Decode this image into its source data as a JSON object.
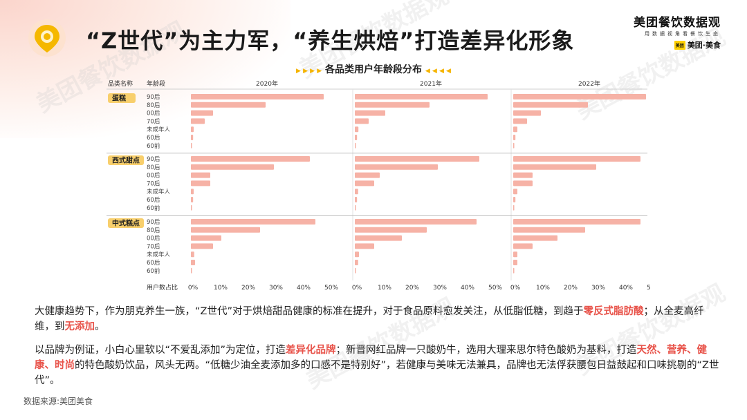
{
  "header": {
    "title": "“Z世代”为主力军，“养生烘焙”打造差异化形象",
    "brand_name": "美团餐饮数据观",
    "brand_sub": "用数据视角看餐饮生态",
    "brand_logo_text": "美团·美食",
    "brand_badge": "美团",
    "watermark": "美团餐饮数据观"
  },
  "chart_title": "各品类用户年龄段分布",
  "chart_data": {
    "type": "bar",
    "orientation": "horizontal",
    "title": "各品类用户年龄段分布",
    "header_category": "品类名称",
    "header_age": "年龄段",
    "xlabel": "用户数占比",
    "xlim": [
      0,
      50
    ],
    "ticks": [
      "0%",
      "10%",
      "20%",
      "30%",
      "40%",
      "50%"
    ],
    "years": [
      "2020年",
      "2021年",
      "2022年"
    ],
    "age_groups": [
      "90后",
      "80后",
      "00后",
      "70后",
      "未成年人",
      "60后",
      "60前"
    ],
    "categories": [
      {
        "name": "蛋糕",
        "values": [
          [
            48,
            27,
            8,
            5,
            1,
            0.8,
            0.3
          ],
          [
            48,
            27,
            11,
            5,
            1.3,
            0.8,
            0.3
          ],
          [
            48,
            27,
            10,
            5,
            1.5,
            0.8,
            0.3
          ]
        ]
      },
      {
        "name": "西式甜点",
        "values": [
          [
            43,
            30,
            7,
            7,
            1,
            0.8,
            0.3
          ],
          [
            45,
            30,
            9,
            7,
            1.2,
            0.8,
            0.3
          ],
          [
            46,
            30,
            7,
            7,
            1.5,
            0.8,
            0.3
          ]
        ]
      },
      {
        "name": "中式糕点",
        "values": [
          [
            45,
            25,
            11,
            8,
            1.2,
            1.5,
            0.3
          ],
          [
            44,
            26,
            17,
            7,
            1.5,
            1.2,
            0.3
          ],
          [
            46,
            26,
            16,
            7,
            1.5,
            1.5,
            0.3
          ]
        ]
      }
    ],
    "colors": {
      "bar": "#f6b2a6",
      "cat_label_bg": "#f8cf6c",
      "divider": "#bbbbbb"
    }
  },
  "paragraphs": {
    "p1_a": "大健康趋势下，作为朋克养生一族，“Z世代”对于烘焙甜品健康的标准在提升，对于食品原料愈发关注，从低脂低糖，到趋于",
    "p1_hl1": "零反式脂肪酸",
    "p1_b": "；从全麦高纤维，到",
    "p1_hl2": "无添加",
    "p1_c": "。",
    "p2_a": "以品牌为例证，小白心里软以“不爱乱添加”为定位，打造",
    "p2_hl1": "差异化品牌",
    "p2_b": "；新晋网红品牌一只酸奶牛，选用大理来思尔特色酸奶为基料，打造",
    "p2_hl2": "天然、营养、健康、时尚",
    "p2_c": "的特色酸奶饮品，风头无两。“低糖少油全麦添加多的口感不是特别好”，若健康与美味无法兼具，品牌也无法俘获腰包日益鼓起和口味挑剔的“Z世代”。"
  },
  "source": "数据来源:美团美食"
}
